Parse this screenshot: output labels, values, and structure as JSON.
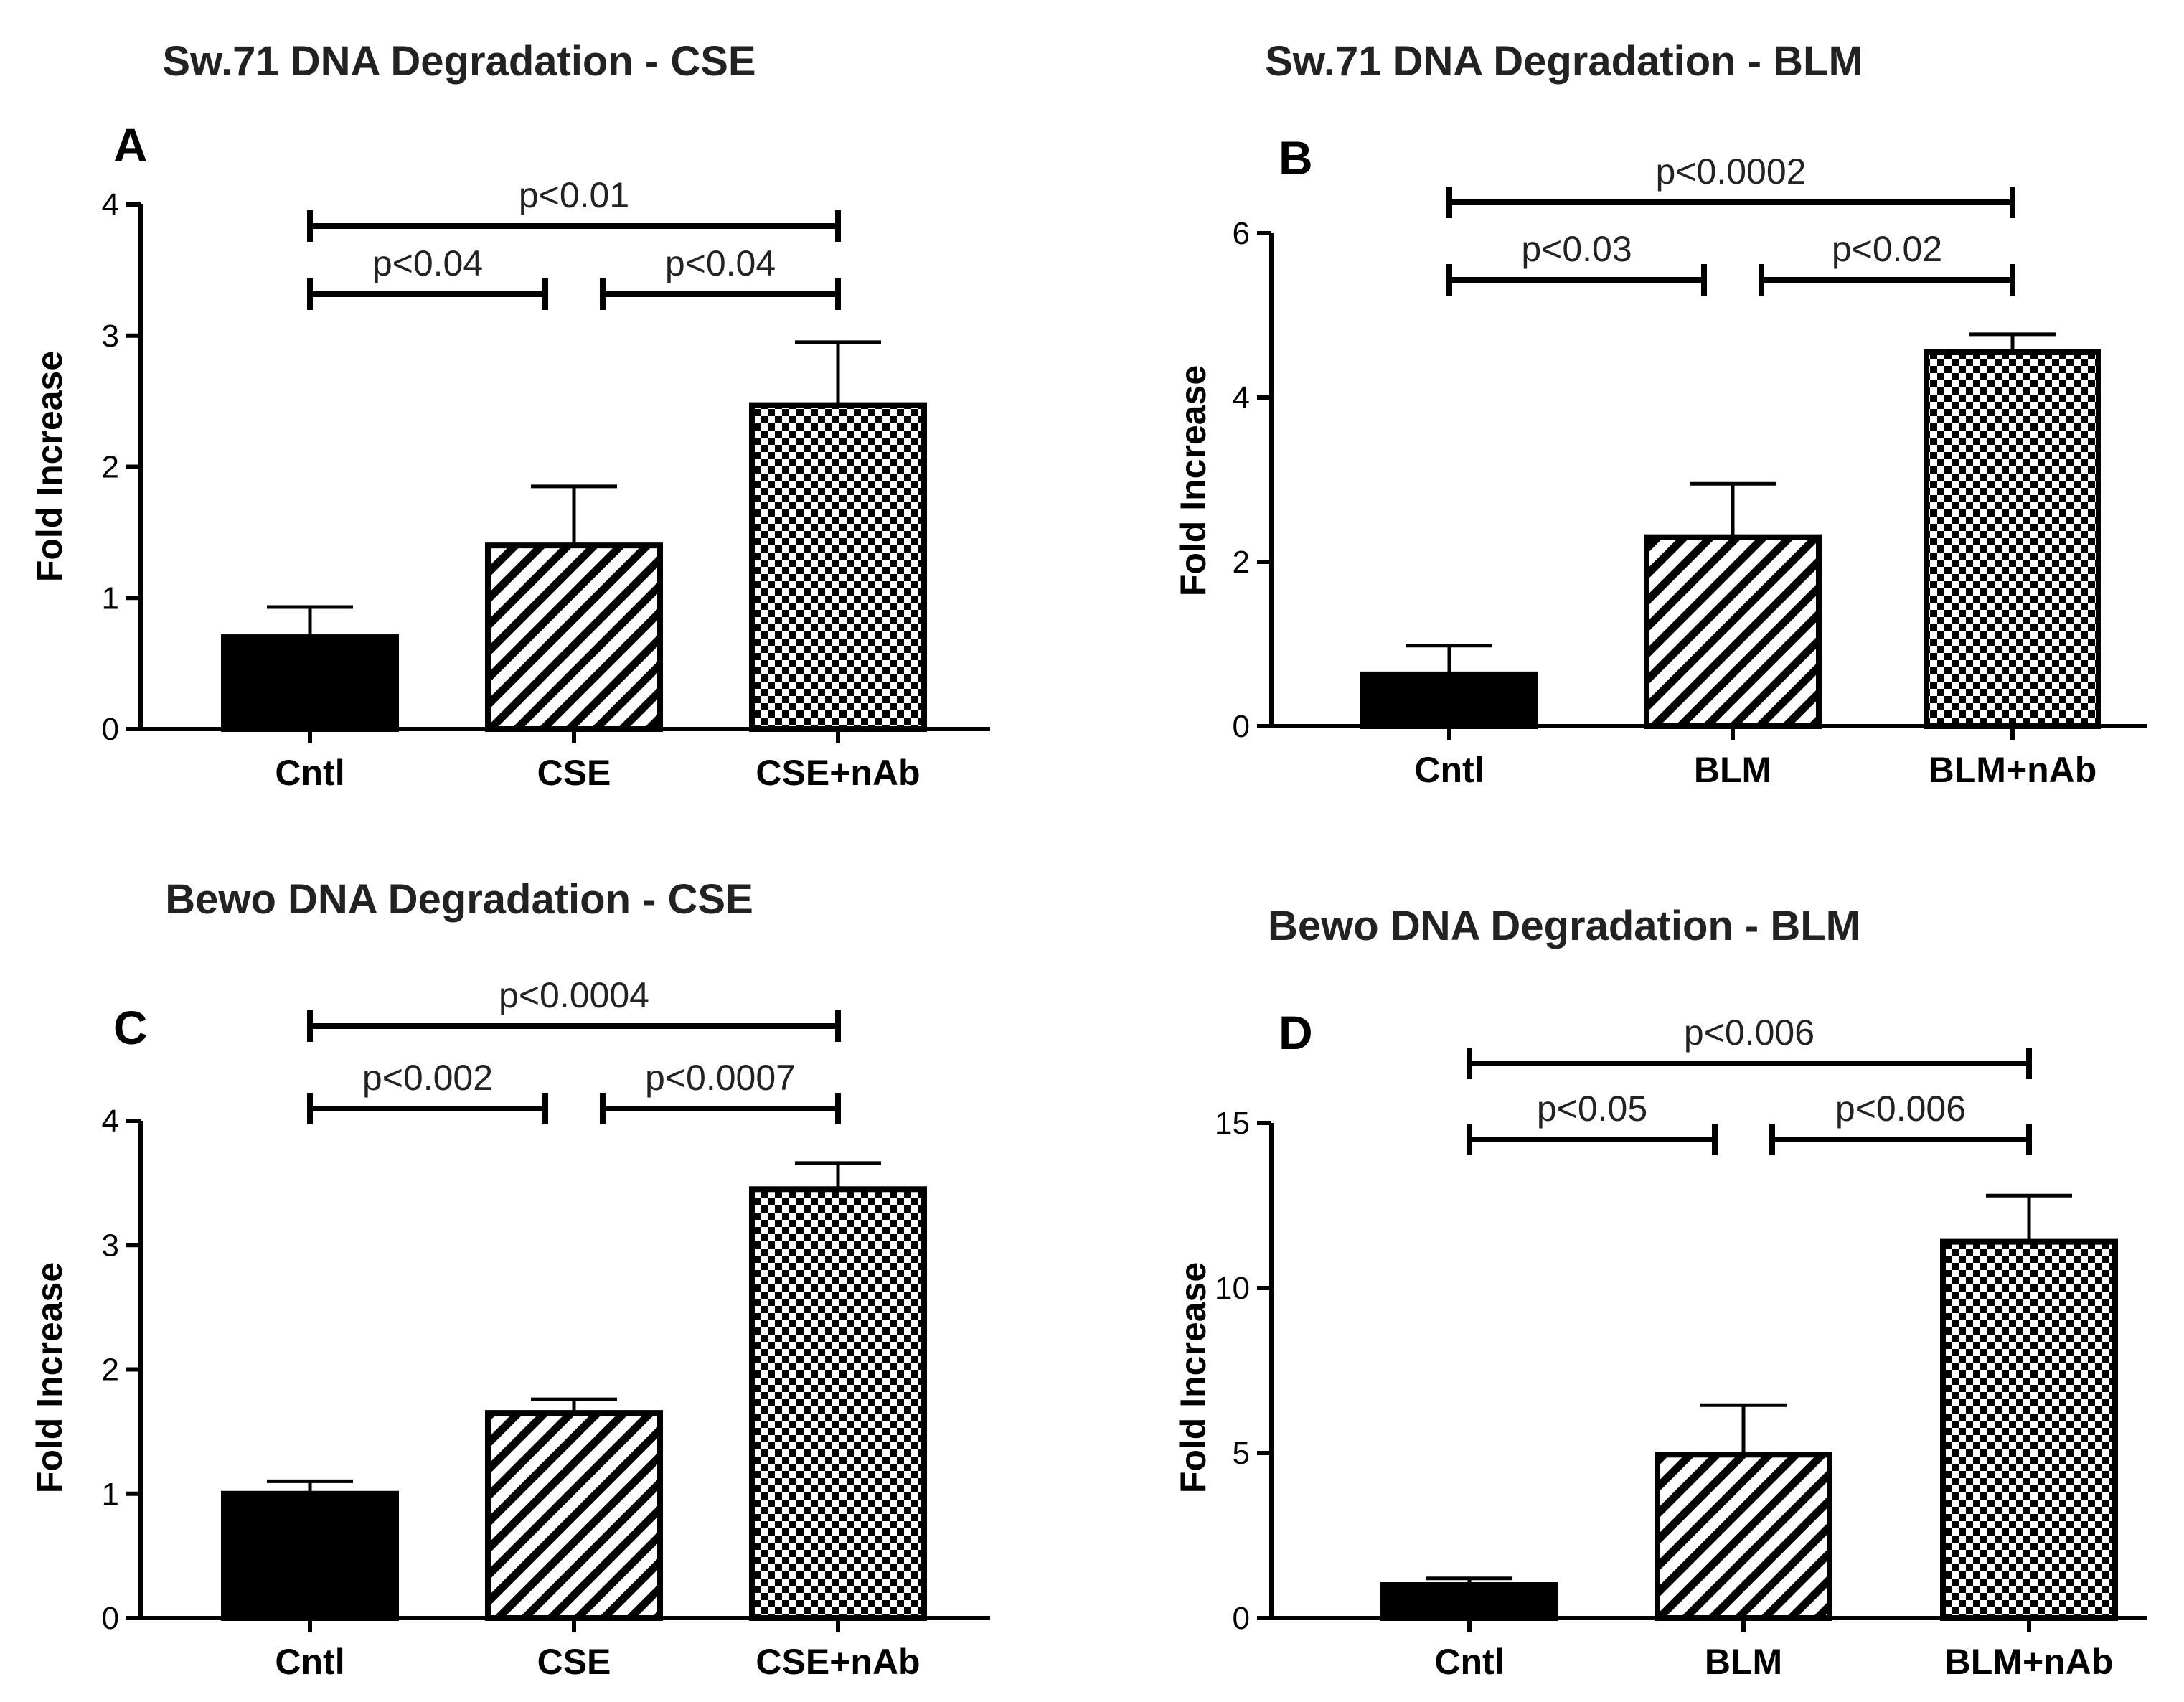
{
  "figure": {
    "colors": {
      "bar_fill_solid": "#000000",
      "line": "#000000",
      "background": "#ffffff"
    }
  },
  "chart_data": [
    {
      "panel": "A",
      "type": "bar",
      "title": "Sw.71 DNA Degradation - CSE",
      "xlabel": "",
      "ylabel": "Fold Increase",
      "categories": [
        "Cntl",
        "CSE",
        "CSE+nAb"
      ],
      "values": [
        0.7,
        1.4,
        2.47
      ],
      "errors": [
        0.23,
        0.45,
        0.48
      ],
      "patterns": [
        "solid",
        "diagonal",
        "checker"
      ],
      "ylim": [
        0,
        4
      ],
      "yticks": [
        0,
        1,
        2,
        3,
        4
      ],
      "comparisons": [
        {
          "from": 0,
          "to": 1,
          "label": "p<0.04",
          "level": 0
        },
        {
          "from": 1,
          "to": 2,
          "label": "p<0.04",
          "level": 0
        },
        {
          "from": 0,
          "to": 2,
          "label": "p<0.01",
          "level": 1
        }
      ]
    },
    {
      "panel": "B",
      "type": "bar",
      "title": "Sw.71 DNA Degradation - BLM",
      "xlabel": "",
      "ylabel": "Fold Increase",
      "categories": [
        "Cntl",
        "BLM",
        "BLM+nAb"
      ],
      "values": [
        0.63,
        2.3,
        4.55
      ],
      "errors": [
        0.35,
        0.65,
        0.22
      ],
      "patterns": [
        "solid",
        "diagonal",
        "checker"
      ],
      "ylim": [
        0,
        6
      ],
      "yticks": [
        0,
        2,
        4,
        6
      ],
      "comparisons": [
        {
          "from": 0,
          "to": 1,
          "label": "p<0.03",
          "level": 0
        },
        {
          "from": 1,
          "to": 2,
          "label": "p<0.02",
          "level": 0
        },
        {
          "from": 0,
          "to": 2,
          "label": "p<0.0002",
          "level": 1
        }
      ]
    },
    {
      "panel": "C",
      "type": "bar",
      "title": "Bewo DNA Degradation - CSE",
      "xlabel": "",
      "ylabel": "Fold Increase",
      "categories": [
        "Cntl",
        "CSE",
        "CSE+nAb"
      ],
      "values": [
        1.0,
        1.65,
        3.45
      ],
      "errors": [
        0.1,
        0.11,
        0.21
      ],
      "patterns": [
        "solid",
        "diagonal",
        "checker"
      ],
      "ylim": [
        0,
        4
      ],
      "yticks": [
        0,
        1,
        2,
        3,
        4
      ],
      "comparisons": [
        {
          "from": 0,
          "to": 1,
          "label": "p<0.002",
          "level": 0
        },
        {
          "from": 1,
          "to": 2,
          "label": "p<0.0007",
          "level": 0
        },
        {
          "from": 0,
          "to": 2,
          "label": "p<0.0004",
          "level": 1
        }
      ]
    },
    {
      "panel": "D",
      "type": "bar",
      "title": "Bewo DNA Degradation - BLM",
      "xlabel": "",
      "ylabel": "Fold Increase",
      "categories": [
        "Cntl",
        "BLM",
        "BLM+nAb"
      ],
      "values": [
        1.0,
        4.95,
        11.4
      ],
      "errors": [
        0.2,
        1.5,
        1.4
      ],
      "patterns": [
        "solid",
        "diagonal",
        "checker"
      ],
      "ylim": [
        0,
        15
      ],
      "yticks": [
        0,
        5,
        10,
        15
      ],
      "comparisons": [
        {
          "from": 0,
          "to": 1,
          "label": "p<0.05",
          "level": 0
        },
        {
          "from": 1,
          "to": 2,
          "label": "p<0.006",
          "level": 0
        },
        {
          "from": 0,
          "to": 2,
          "label": "p<0.006",
          "level": 1
        }
      ]
    }
  ]
}
